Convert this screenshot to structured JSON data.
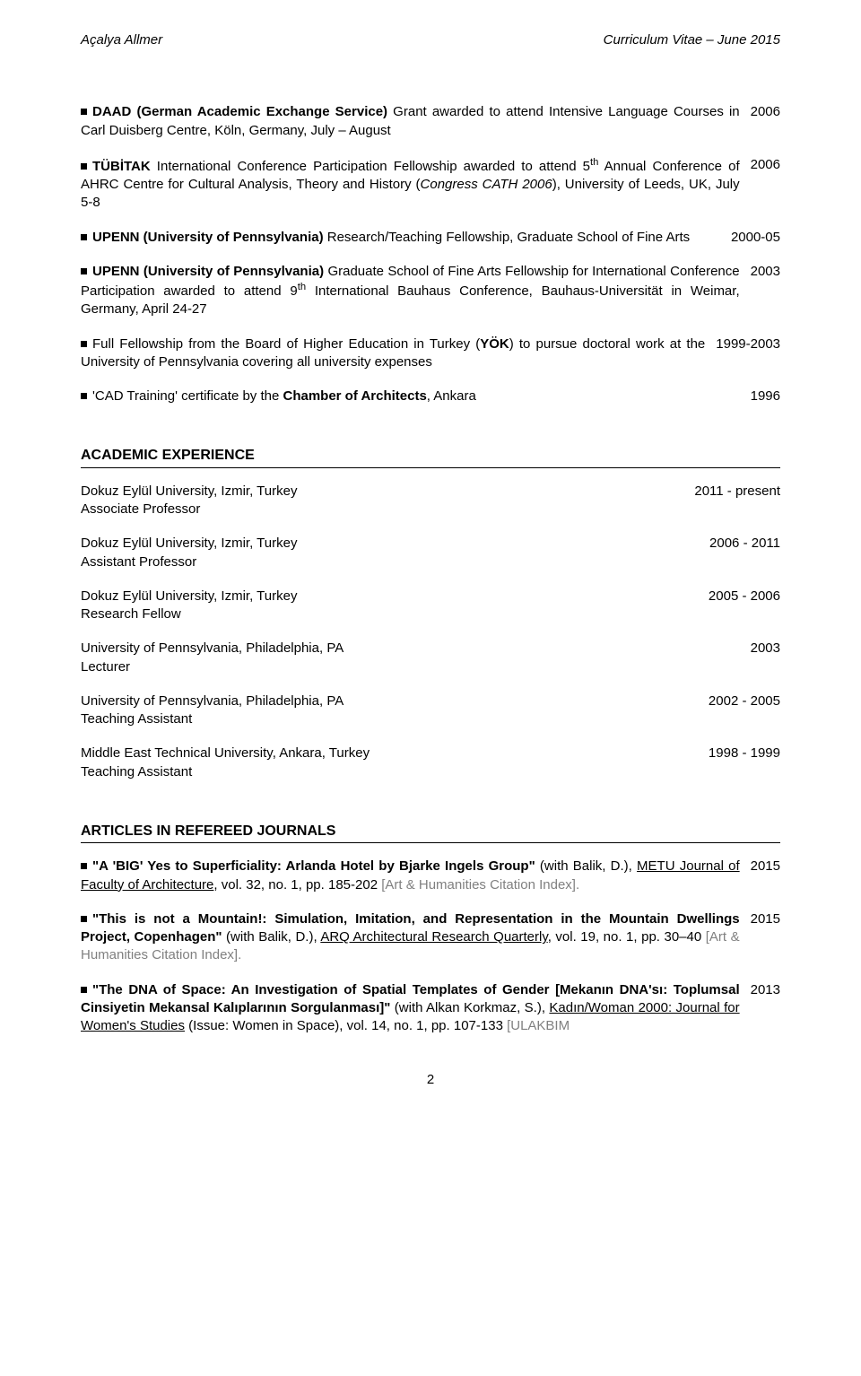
{
  "header": {
    "left": "Açalya Allmer",
    "right": "Curriculum Vitae – June 2015"
  },
  "awards": [
    {
      "pre_bold": "DAAD (German Academic Exchange Service)",
      "rest": " Grant awarded to attend Intensive Language Courses in Carl Duisberg Centre, Köln, Germany, July – August",
      "year": "2006"
    },
    {
      "pre_bold": "TÜBİTAK",
      "rest": " International Conference Participation Fellowship awarded to attend 5",
      "sup": "th",
      "rest2": " Annual Conference of AHRC Centre for Cultural Analysis, Theory and History (",
      "italic": "Congress CATH 2006",
      "rest3": "), University of Leeds, UK, July 5-8",
      "year": "2006"
    },
    {
      "pre_bold": "UPENN (University of Pennsylvania)",
      "rest": " Research/Teaching Fellowship, Graduate School of Fine Arts",
      "year": "2000-05"
    },
    {
      "pre_bold": "UPENN (University of Pennsylvania)",
      "rest": " Graduate School of Fine Arts Fellowship for International Conference Participation awarded to attend 9",
      "sup": "th",
      "rest2": " International Bauhaus Conference, Bauhaus-Universität in Weimar, Germany, April 24-27",
      "year": "2003"
    },
    {
      "rest": "Full Fellowship from the Board of Higher Education in Turkey (",
      "pre_bold": "YÖK",
      "rest2": ") to pursue doctoral work at the University of Pennsylvania covering all university expenses",
      "year": "1999-2003",
      "bold_mid": true
    },
    {
      "rest": "'CAD Training' certificate by the ",
      "pre_bold": "Chamber of Architects",
      "rest2": ", Ankara",
      "year": "1996",
      "bold_mid": true
    }
  ],
  "sections": {
    "academic": "ACADEMIC EXPERIENCE",
    "articles": "ARTICLES IN REFEREED JOURNALS"
  },
  "experience": [
    {
      "inst": "Dokuz Eylül University, Izmir, Turkey",
      "role": "Associate Professor",
      "year": "2011 - present"
    },
    {
      "inst": "Dokuz Eylül University, Izmir, Turkey",
      "role": "Assistant Professor",
      "year": "2006 - 2011"
    },
    {
      "inst": "Dokuz Eylül University, Izmir, Turkey",
      "role": "Research Fellow",
      "year": "2005 - 2006"
    },
    {
      "inst": "University of Pennsylvania, Philadelphia, PA",
      "role": "Lecturer",
      "year": "2003"
    },
    {
      "inst": "University of Pennsylvania, Philadelphia, PA",
      "role": "Teaching Assistant",
      "year": "2002 - 2005"
    },
    {
      "inst": "Middle East Technical University, Ankara, Turkey",
      "role": "Teaching Assistant",
      "year": "1998 - 1999"
    }
  ],
  "articles": [
    {
      "bold": "\"A 'BIG' Yes to Superficiality: Arlanda Hotel by Bjarke Ingels Group\"",
      "plain1": " (with Balik, D.), ",
      "underline": "METU Journal of Faculty of Architecture",
      "plain2": ", vol. 32, no. 1, pp. 185-202 ",
      "gray": "[Art & Humanities Citation Index].",
      "year": "2015"
    },
    {
      "bold": "\"This is not a Mountain!: Simulation, Imitation, and Representation in the Mountain Dwellings Project, Copenhagen\"",
      "plain1": " (with Balik, D.), ",
      "underline": "ARQ Architectural Research Quarterly",
      "plain2": ", vol. 19, no. 1, pp. 30–40 ",
      "gray": "[Art & Humanities Citation Index].",
      "year": "2015"
    },
    {
      "bold": "\"The DNA of Space: An Investigation of Spatial Templates of Gender [Mekanın DNA'sı: Toplumsal Cinsiyetin Mekansal Kalıplarının Sorgulanması]\"",
      "plain1": " (with Alkan Korkmaz, S.), ",
      "underline": "Kadın/Woman 2000: Journal for Women's Studies",
      "plain2": " (Issue: Women in Space), vol. 14, no. 1, pp. 107-133 ",
      "gray": "[ULAKBIM",
      "year": "2013"
    }
  ],
  "pagenum": "2"
}
